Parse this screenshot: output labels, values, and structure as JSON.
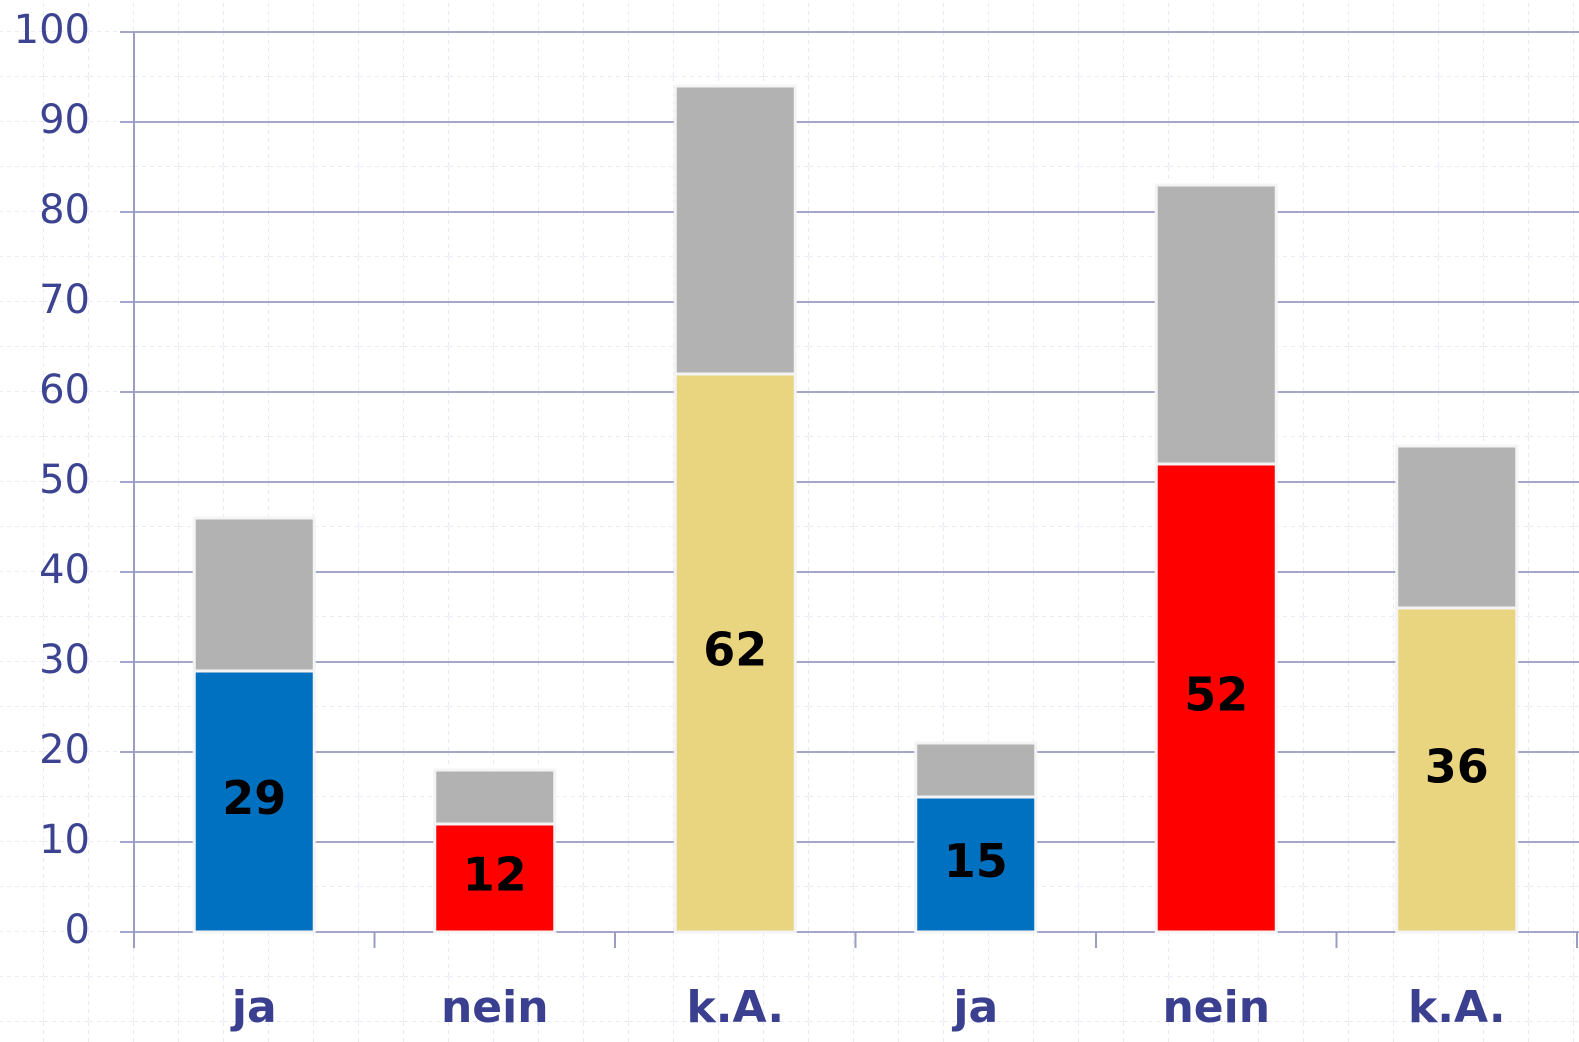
{
  "chart_data": {
    "type": "stacked_bar",
    "categories": [
      "ja",
      "nein",
      "k.A.",
      "ja",
      "nein",
      "k.A."
    ],
    "series": [
      {
        "colors": [
          "#0070c0",
          "#ff0000",
          "#e9d480",
          "#0070c0",
          "#ff0000",
          "#e9d480"
        ],
        "values": [
          29,
          12,
          62,
          15,
          52,
          36
        ]
      },
      {
        "color": "#b2b2b2",
        "values": [
          17,
          6,
          32,
          6,
          31,
          18
        ]
      }
    ],
    "ylim": [
      0,
      100
    ],
    "yticks": [
      0,
      10,
      20,
      30,
      40,
      50,
      60,
      70,
      80,
      90,
      100
    ],
    "grid": true
  }
}
